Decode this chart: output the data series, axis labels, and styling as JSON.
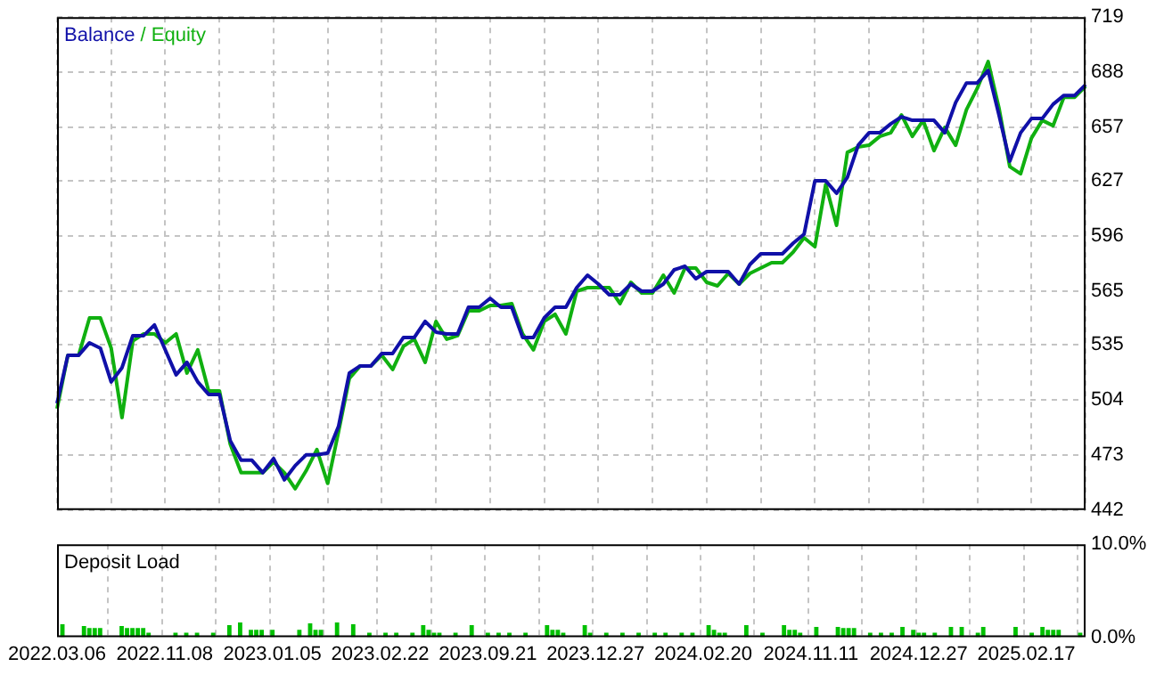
{
  "chart_data": [
    {
      "type": "line",
      "categories": [
        null,
        null,
        null,
        null,
        null,
        null,
        null,
        null,
        null,
        null,
        null,
        null,
        null,
        null,
        null,
        null,
        null,
        null,
        null,
        null,
        null,
        null,
        null,
        null,
        null,
        null,
        null,
        null,
        null,
        null,
        null,
        null,
        null,
        null,
        null,
        null,
        null,
        null,
        null,
        null,
        null,
        null,
        null,
        null,
        null,
        null,
        null,
        null,
        null,
        null,
        null,
        null,
        null,
        null,
        null,
        null,
        null,
        null,
        null,
        null,
        null,
        null,
        null,
        null,
        null,
        null,
        null,
        null,
        null,
        null,
        null,
        null,
        null,
        null,
        null,
        null,
        null,
        null,
        null,
        null,
        null,
        null,
        null,
        null,
        null,
        null,
        null,
        null,
        null,
        null,
        null,
        null,
        null,
        null,
        null,
        null
      ],
      "series": [
        {
          "name": "Balance",
          "color": "#1010a8",
          "values": [
            502,
            529,
            529,
            536,
            533,
            514,
            522,
            540,
            540,
            546,
            532,
            518,
            525,
            514,
            507,
            507,
            481,
            470,
            470,
            463,
            471,
            459,
            467,
            473,
            473,
            474,
            489,
            519,
            523,
            523,
            530,
            530,
            539,
            539,
            548,
            542,
            541,
            541,
            556,
            556,
            561,
            556,
            556,
            539,
            539,
            550,
            556,
            556,
            567,
            574,
            569,
            563,
            563,
            569,
            565,
            565,
            569,
            577,
            579,
            572,
            576,
            576,
            576,
            569,
            580,
            586,
            586,
            586,
            592,
            597,
            627,
            627,
            620,
            629,
            647,
            654,
            654,
            659,
            663,
            661,
            661,
            661,
            654,
            671,
            682,
            682,
            689,
            664,
            638,
            654,
            662,
            662,
            670,
            675,
            675,
            681
          ]
        },
        {
          "name": "Equity",
          "color": "#10b010",
          "values": [
            499,
            529,
            529,
            550,
            550,
            533,
            494,
            537,
            541,
            541,
            536,
            541,
            519,
            532,
            509,
            509,
            479,
            463,
            463,
            463,
            469,
            463,
            454,
            464,
            476,
            457,
            486,
            516,
            523,
            523,
            529,
            521,
            534,
            538,
            525,
            548,
            538,
            540,
            554,
            554,
            557,
            557,
            558,
            541,
            532,
            548,
            552,
            541,
            565,
            567,
            567,
            567,
            558,
            570,
            564,
            564,
            574,
            564,
            578,
            578,
            570,
            568,
            575,
            569,
            575,
            578,
            581,
            581,
            587,
            595,
            590,
            625,
            602,
            643,
            646,
            647,
            652,
            654,
            664,
            652,
            661,
            644,
            657,
            647,
            667,
            679,
            694,
            668,
            635,
            631,
            651,
            661,
            658,
            674,
            674,
            680
          ]
        }
      ],
      "ylim": [
        442,
        719
      ],
      "yticks": [
        442,
        473,
        504,
        535,
        565,
        596,
        627,
        657,
        688,
        719
      ],
      "grid": true,
      "legend": "top left",
      "tick_labels": "y",
      "marker": "none",
      "annotations": [
        "/"
      ]
    },
    {
      "type": "bar",
      "title": "Deposit Load",
      "categories": [
        "2022.03.06",
        null,
        null,
        null,
        null,
        null,
        null,
        null,
        null,
        null,
        null,
        null,
        null,
        null,
        null,
        null,
        null,
        null,
        null,
        null,
        "2022.11.08",
        null,
        null,
        null,
        null,
        null,
        null,
        null,
        null,
        null,
        null,
        null,
        null,
        null,
        null,
        null,
        null,
        null,
        null,
        null,
        "2023.01.05",
        null,
        null,
        null,
        null,
        null,
        null,
        null,
        null,
        null,
        null,
        null,
        null,
        null,
        null,
        null,
        null,
        null,
        null,
        null,
        "2023.02.22",
        null,
        null,
        null,
        null,
        null,
        null,
        null,
        null,
        null,
        null,
        null,
        null,
        null,
        null,
        null,
        null,
        null,
        null,
        null,
        "2023.09.21",
        null,
        null,
        null,
        null,
        null,
        null,
        null,
        null,
        null,
        null,
        null,
        null,
        null,
        null,
        null,
        null,
        null,
        null,
        null,
        "2023.12.27",
        null,
        null,
        null,
        null,
        null,
        null,
        null,
        null,
        null,
        null,
        null,
        null,
        null,
        null,
        null,
        null,
        null,
        null,
        null,
        "2024.02.20",
        null,
        null,
        null,
        null,
        null,
        null,
        null,
        null,
        null,
        null,
        null,
        null,
        null,
        null,
        null,
        null,
        null,
        null,
        null,
        "2024.11.11",
        null,
        null,
        null,
        null,
        null,
        null,
        null,
        null,
        null,
        null,
        null,
        null,
        null,
        null,
        null,
        null,
        null,
        null,
        null,
        "2024.12.27",
        null,
        null,
        null,
        null,
        null,
        null,
        null,
        null,
        null,
        null,
        null,
        null,
        null,
        null,
        null,
        null,
        null,
        null,
        null,
        "2025.02.17",
        null,
        null,
        null,
        null,
        null,
        null,
        null,
        null,
        null,
        null,
        null
      ],
      "values": [
        null,
        1.4,
        null,
        null,
        null,
        1.2,
        1.0,
        1.0,
        1.0,
        null,
        null,
        null,
        1.2,
        1.0,
        1.0,
        1.0,
        1.0,
        0.5,
        null,
        null,
        null,
        null,
        0.5,
        null,
        0.5,
        null,
        0.5,
        null,
        null,
        0.5,
        null,
        null,
        1.3,
        null,
        1.6,
        null,
        0.8,
        0.8,
        0.8,
        null,
        0.8,
        null,
        null,
        null,
        null,
        0.8,
        null,
        1.5,
        0.8,
        0.8,
        null,
        null,
        1.6,
        null,
        null,
        1.4,
        null,
        null,
        0.5,
        null,
        null,
        0.5,
        null,
        0.5,
        null,
        null,
        0.5,
        null,
        1.3,
        0.8,
        0.5,
        0.5,
        null,
        null,
        0.5,
        null,
        null,
        1.3,
        null,
        null,
        0.5,
        null,
        0.5,
        null,
        0.5,
        null,
        null,
        0.5,
        null,
        null,
        null,
        1.3,
        0.8,
        0.8,
        0.5,
        null,
        null,
        null,
        1.3,
        0.5,
        null,
        null,
        0.5,
        null,
        null,
        0.5,
        null,
        null,
        0.5,
        null,
        null,
        0.5,
        null,
        0.5,
        null,
        null,
        0.5,
        null,
        0.5,
        null,
        null,
        1.3,
        0.8,
        0.5,
        0.5,
        null,
        null,
        null,
        1.3,
        null,
        null,
        0.5,
        null,
        null,
        null,
        1.3,
        0.8,
        0.8,
        0.5,
        null,
        null,
        1.1,
        null,
        null,
        null,
        1.1,
        1.0,
        1.0,
        1.0,
        null,
        null,
        0.5,
        null,
        0.5,
        null,
        0.5,
        null,
        1.1,
        null,
        0.8,
        0.5,
        0.5,
        null,
        0.5,
        null,
        null,
        1.1,
        null,
        1.1,
        null,
        null,
        0.5,
        1.1,
        null,
        null,
        null,
        null,
        null,
        1.1,
        null,
        null,
        0.5,
        null,
        1.1,
        0.8,
        0.8,
        0.8,
        null,
        null,
        null,
        0.5,
        null
      ],
      "color": "#00c000",
      "ylim": [
        0,
        10
      ],
      "yticks": [
        {
          "value": 0,
          "label": "0.0%"
        },
        {
          "value": 10,
          "label": "10.0%"
        }
      ],
      "grid": "x"
    }
  ]
}
